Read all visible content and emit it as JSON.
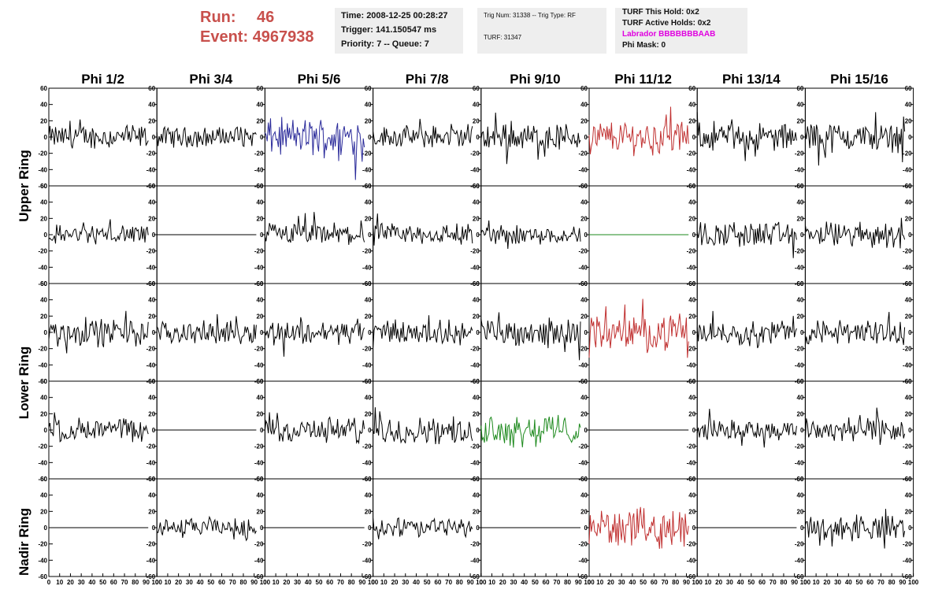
{
  "header": {
    "run_label": "Run:",
    "run_value": "46",
    "event_label": "Event:",
    "event_value": "4967938",
    "time": "Time: 2008-12-25 00:28:27",
    "trigger": "Trigger: 141.150547 ms",
    "priority": "Priority: 7 -- Queue: 7",
    "trig_num": "Trig Num: 31338 -- Trig Type: RF",
    "turf": "TURF: 31347",
    "turf_this_hold": "TURF This Hold: 0x2",
    "turf_active_holds": "TURF Active Holds: 0x2",
    "labrador": "Labrador BBBBBBBAAB",
    "phi_mask": "Phi Mask: 0"
  },
  "colors": {
    "run_text": "#c8504c",
    "labrador_text": "#e000e0",
    "trace_default": "#000000",
    "trace_blue": "#2a2a9a",
    "trace_red": "#c03030",
    "trace_green": "#1e8a1e"
  },
  "chart_data": {
    "type": "line",
    "columns": [
      "Phi 1/2",
      "Phi 3/4",
      "Phi 5/6",
      "Phi 7/8",
      "Phi 9/10",
      "Phi 11/12",
      "Phi 13/14",
      "Phi 15/16"
    ],
    "ring_labels": [
      "Upper Ring",
      "Lower Ring",
      "Nadir Ring"
    ],
    "rows": 5,
    "ylim": [
      -60,
      60
    ],
    "yticks": [
      -60,
      -40,
      -20,
      0,
      20,
      40,
      60
    ],
    "xlim": [
      0,
      100
    ],
    "xticks": [
      0,
      10,
      20,
      30,
      40,
      50,
      60,
      70,
      80,
      90,
      100
    ],
    "samples": 90,
    "grid": false,
    "panels": [
      [
        {
          "a": 12,
          "c": "trace_default"
        },
        {
          "a": 10,
          "c": "trace_default"
        },
        {
          "a": 19,
          "c": "trace_blue"
        },
        {
          "a": 11,
          "c": "trace_default"
        },
        {
          "a": 14,
          "c": "trace_default"
        },
        {
          "a": 17,
          "c": "trace_red"
        },
        {
          "a": 14,
          "c": "trace_default"
        },
        {
          "a": 15,
          "c": "trace_default"
        }
      ],
      [
        {
          "a": 10,
          "c": "trace_default"
        },
        {
          "a": 0,
          "c": "trace_default"
        },
        {
          "a": 12,
          "c": "trace_default"
        },
        {
          "a": 11,
          "c": "trace_default"
        },
        {
          "a": 10,
          "c": "trace_default"
        },
        {
          "a": 0,
          "c": "trace_green"
        },
        {
          "a": 13,
          "c": "trace_default"
        },
        {
          "a": 13,
          "c": "trace_default"
        }
      ],
      [
        {
          "a": 14,
          "c": "trace_default"
        },
        {
          "a": 11,
          "c": "trace_default"
        },
        {
          "a": 12,
          "c": "trace_default"
        },
        {
          "a": 12,
          "c": "trace_default"
        },
        {
          "a": 14,
          "c": "trace_default"
        },
        {
          "a": 17,
          "c": "trace_red"
        },
        {
          "a": 12,
          "c": "trace_default"
        },
        {
          "a": 13,
          "c": "trace_default"
        }
      ],
      [
        {
          "a": 12,
          "c": "trace_default"
        },
        {
          "a": 0,
          "c": "trace_default"
        },
        {
          "a": 13,
          "c": "trace_default"
        },
        {
          "a": 13,
          "c": "trace_default"
        },
        {
          "a": 16,
          "c": "trace_green"
        },
        {
          "a": 0,
          "c": "trace_default"
        },
        {
          "a": 10,
          "c": "trace_default"
        },
        {
          "a": 14,
          "c": "trace_default"
        }
      ],
      [
        {
          "a": 0,
          "c": "trace_default"
        },
        {
          "a": 9,
          "c": "trace_default"
        },
        {
          "a": 0,
          "c": "trace_default"
        },
        {
          "a": 10,
          "c": "trace_default"
        },
        {
          "a": 0,
          "c": "trace_default"
        },
        {
          "a": 19,
          "c": "trace_red"
        },
        {
          "a": 0,
          "c": "trace_default"
        },
        {
          "a": 12,
          "c": "trace_default"
        }
      ]
    ]
  }
}
